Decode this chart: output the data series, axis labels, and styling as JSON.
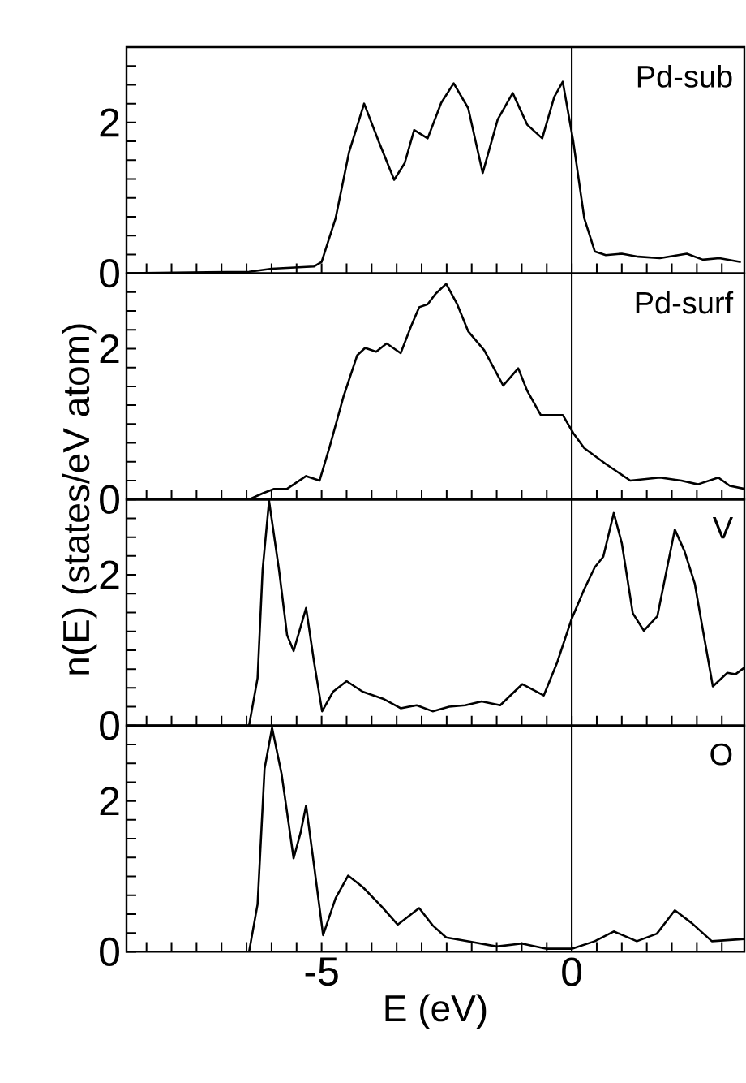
{
  "chart_data": [
    {
      "type": "line",
      "xlim": [
        -8.9,
        3.45
      ],
      "ylim": [
        0,
        3
      ],
      "tick_labels": "y",
      "legend": false,
      "grid": false,
      "marker": "none",
      "line_style": "solid",
      "xticks": [
        {
          "value": -8.5,
          "label": null
        },
        {
          "value": -8,
          "label": null
        },
        {
          "value": -7.5,
          "label": null
        },
        {
          "value": -7,
          "label": null
        },
        {
          "value": -6.5,
          "label": null
        },
        {
          "value": -6,
          "label": null
        },
        {
          "value": -5.5,
          "label": null
        },
        -5,
        {
          "value": -4.5,
          "label": null
        },
        {
          "value": -4,
          "label": null
        },
        {
          "value": -3.5,
          "label": null
        },
        {
          "value": -3,
          "label": null
        },
        {
          "value": -2.5,
          "label": null
        },
        {
          "value": -2,
          "label": null
        },
        {
          "value": -1.5,
          "label": null
        },
        {
          "value": -1,
          "label": null
        },
        {
          "value": -0.5,
          "label": null
        },
        0,
        {
          "value": 0.5,
          "label": null
        },
        {
          "value": 1,
          "label": null
        },
        {
          "value": 1.5,
          "label": null
        },
        {
          "value": 2,
          "label": null
        },
        {
          "value": 2.5,
          "label": null
        },
        {
          "value": 3,
          "label": null
        }
      ],
      "yticks": [
        0,
        {
          "value": 0.25,
          "label": null
        },
        {
          "value": 0.5,
          "label": null
        },
        {
          "value": 0.75,
          "label": null
        },
        {
          "value": 1,
          "label": null
        },
        {
          "value": 1.25,
          "label": null
        },
        {
          "value": 1.5,
          "label": null
        },
        {
          "value": 1.75,
          "label": null
        },
        2,
        {
          "value": 2.25,
          "label": null
        },
        {
          "value": 2.5,
          "label": null
        },
        {
          "value": 2.75,
          "label": null
        }
      ],
      "ref_lines": [
        {
          "axis": "x",
          "value": 0,
          "color": "#000000"
        }
      ],
      "series": [
        {
          "name": "Pd-sub",
          "color": "#000000",
          "x": [
            -8.9,
            -6.45,
            -6.0,
            -5.15,
            -5.0,
            -4.72,
            -4.45,
            -4.15,
            -3.86,
            -3.55,
            -3.34,
            -3.15,
            -2.88,
            -2.61,
            -2.36,
            -2.07,
            -1.78,
            -1.48,
            -1.18,
            -0.89,
            -0.59,
            -0.35,
            -0.18,
            0.03,
            0.25,
            0.46,
            0.68,
            1.0,
            1.33,
            1.76,
            2.3,
            2.62,
            2.95,
            3.38
          ],
          "values": [
            0,
            0.02,
            0.06,
            0.09,
            0.15,
            0.73,
            1.61,
            2.25,
            1.75,
            1.24,
            1.46,
            1.9,
            1.79,
            2.26,
            2.52,
            2.19,
            1.33,
            2.04,
            2.39,
            1.97,
            1.79,
            2.34,
            2.54,
            1.75,
            0.73,
            0.29,
            0.24,
            0.26,
            0.22,
            0.2,
            0.26,
            0.18,
            0.2,
            0.15
          ]
        }
      ]
    },
    {
      "type": "line",
      "xlim": [
        -8.9,
        3.45
      ],
      "ylim": [
        0,
        3
      ],
      "tick_labels": "y",
      "legend": false,
      "grid": false,
      "marker": "none",
      "line_style": "solid",
      "ylabel": "n(E) (states/eV atom)",
      "xticks": [
        {
          "value": -8.5,
          "label": null
        },
        {
          "value": -8,
          "label": null
        },
        {
          "value": -7.5,
          "label": null
        },
        {
          "value": -7,
          "label": null
        },
        {
          "value": -6.5,
          "label": null
        },
        {
          "value": -6,
          "label": null
        },
        {
          "value": -5.5,
          "label": null
        },
        -5,
        {
          "value": -4.5,
          "label": null
        },
        {
          "value": -4,
          "label": null
        },
        {
          "value": -3.5,
          "label": null
        },
        {
          "value": -3,
          "label": null
        },
        {
          "value": -2.5,
          "label": null
        },
        {
          "value": -2,
          "label": null
        },
        {
          "value": -1.5,
          "label": null
        },
        {
          "value": -1,
          "label": null
        },
        {
          "value": -0.5,
          "label": null
        },
        0,
        {
          "value": 0.5,
          "label": null
        },
        {
          "value": 1,
          "label": null
        },
        {
          "value": 1.5,
          "label": null
        },
        {
          "value": 2,
          "label": null
        },
        {
          "value": 2.5,
          "label": null
        },
        {
          "value": 3,
          "label": null
        }
      ],
      "yticks": [
        0,
        {
          "value": 0.25,
          "label": null
        },
        {
          "value": 0.5,
          "label": null
        },
        {
          "value": 0.75,
          "label": null
        },
        {
          "value": 1,
          "label": null
        },
        {
          "value": 1.25,
          "label": null
        },
        {
          "value": 1.5,
          "label": null
        },
        {
          "value": 1.75,
          "label": null
        },
        2,
        {
          "value": 2.25,
          "label": null
        },
        {
          "value": 2.5,
          "label": null
        },
        {
          "value": 2.75,
          "label": null
        }
      ],
      "ref_lines": [
        {
          "axis": "x",
          "value": 0,
          "color": "#000000"
        }
      ],
      "series": [
        {
          "name": "Pd-surf",
          "color": "#000000",
          "x": [
            -8.9,
            -6.45,
            -6.18,
            -5.95,
            -5.69,
            -5.31,
            -5.04,
            -4.83,
            -4.56,
            -4.29,
            -4.13,
            -3.91,
            -3.7,
            -3.42,
            -3.21,
            -3.05,
            -2.88,
            -2.72,
            -2.51,
            -2.29,
            -2.07,
            -1.75,
            -1.37,
            -1.07,
            -0.89,
            -0.62,
            -0.18,
            0.03,
            0.25,
            0.68,
            1.17,
            1.76,
            2.19,
            2.52,
            2.93,
            3.16,
            3.45
          ],
          "values": [
            0,
            0,
            0.08,
            0.14,
            0.14,
            0.31,
            0.25,
            0.72,
            1.37,
            1.91,
            2.01,
            1.96,
            2.07,
            1.94,
            2.3,
            2.55,
            2.59,
            2.73,
            2.86,
            2.59,
            2.23,
            1.98,
            1.51,
            1.74,
            1.44,
            1.12,
            1.12,
            0.88,
            0.68,
            0.47,
            0.25,
            0.29,
            0.25,
            0.2,
            0.29,
            0.18,
            0.14
          ]
        }
      ]
    },
    {
      "type": "line",
      "xlim": [
        -8.9,
        3.45
      ],
      "ylim": [
        0,
        3
      ],
      "tick_labels": "y",
      "legend": false,
      "grid": false,
      "marker": "none",
      "line_style": "solid",
      "xticks": [
        {
          "value": -8.5,
          "label": null
        },
        {
          "value": -8,
          "label": null
        },
        {
          "value": -7.5,
          "label": null
        },
        {
          "value": -7,
          "label": null
        },
        {
          "value": -6.5,
          "label": null
        },
        {
          "value": -6,
          "label": null
        },
        {
          "value": -5.5,
          "label": null
        },
        -5,
        {
          "value": -4.5,
          "label": null
        },
        {
          "value": -4,
          "label": null
        },
        {
          "value": -3.5,
          "label": null
        },
        {
          "value": -3,
          "label": null
        },
        {
          "value": -2.5,
          "label": null
        },
        {
          "value": -2,
          "label": null
        },
        {
          "value": -1.5,
          "label": null
        },
        {
          "value": -1,
          "label": null
        },
        {
          "value": -0.5,
          "label": null
        },
        0,
        {
          "value": 0.5,
          "label": null
        },
        {
          "value": 1,
          "label": null
        },
        {
          "value": 1.5,
          "label": null
        },
        {
          "value": 2,
          "label": null
        },
        {
          "value": 2.5,
          "label": null
        },
        {
          "value": 3,
          "label": null
        }
      ],
      "yticks": [
        0,
        {
          "value": 0.25,
          "label": null
        },
        {
          "value": 0.5,
          "label": null
        },
        {
          "value": 0.75,
          "label": null
        },
        {
          "value": 1,
          "label": null
        },
        {
          "value": 1.25,
          "label": null
        },
        {
          "value": 1.5,
          "label": null
        },
        {
          "value": 1.75,
          "label": null
        },
        2,
        {
          "value": 2.25,
          "label": null
        },
        {
          "value": 2.5,
          "label": null
        },
        {
          "value": 2.75,
          "label": null
        }
      ],
      "ref_lines": [
        {
          "axis": "x",
          "value": 0,
          "color": "#000000"
        }
      ],
      "series": [
        {
          "name": "V",
          "color": "#000000",
          "x": [
            -8.9,
            -6.45,
            -6.28,
            -6.18,
            -6.05,
            -5.85,
            -5.69,
            -5.56,
            -5.31,
            -5.15,
            -4.99,
            -4.77,
            -4.5,
            -4.18,
            -3.75,
            -3.42,
            -3.1,
            -2.78,
            -2.45,
            -2.13,
            -1.8,
            -1.43,
            -0.99,
            -0.56,
            -0.29,
            0,
            0.25,
            0.46,
            0.63,
            0.84,
            1.0,
            1.22,
            1.44,
            1.71,
            2.06,
            2.25,
            2.46,
            2.62,
            2.82,
            3.11,
            3.27,
            3.45
          ],
          "values": [
            0,
            0,
            0.63,
            2.06,
            2.98,
            2.06,
            1.2,
            0.99,
            1.56,
            0.84,
            0.19,
            0.45,
            0.59,
            0.45,
            0.35,
            0.23,
            0.27,
            0.19,
            0.25,
            0.27,
            0.32,
            0.27,
            0.55,
            0.4,
            0.84,
            1.42,
            1.81,
            2.1,
            2.24,
            2.82,
            2.42,
            1.49,
            1.26,
            1.45,
            2.6,
            2.32,
            1.88,
            1.27,
            0.52,
            0.7,
            0.68,
            0.77
          ]
        }
      ]
    },
    {
      "type": "line",
      "xlim": [
        -8.9,
        3.45
      ],
      "ylim": [
        0,
        3
      ],
      "legend": false,
      "grid": false,
      "marker": "none",
      "line_style": "solid",
      "xlabel": "E (eV)",
      "xticks": [
        {
          "value": -8.5,
          "label": null
        },
        {
          "value": -8,
          "label": null
        },
        {
          "value": -7.5,
          "label": null
        },
        {
          "value": -7,
          "label": null
        },
        {
          "value": -6.5,
          "label": null
        },
        {
          "value": -6,
          "label": null
        },
        {
          "value": -5.5,
          "label": null
        },
        -5,
        {
          "value": -4.5,
          "label": null
        },
        {
          "value": -4,
          "label": null
        },
        {
          "value": -3.5,
          "label": null
        },
        {
          "value": -3,
          "label": null
        },
        {
          "value": -2.5,
          "label": null
        },
        {
          "value": -2,
          "label": null
        },
        {
          "value": -1.5,
          "label": null
        },
        {
          "value": -1,
          "label": null
        },
        {
          "value": -0.5,
          "label": null
        },
        0,
        {
          "value": 0.5,
          "label": null
        },
        {
          "value": 1,
          "label": null
        },
        {
          "value": 1.5,
          "label": null
        },
        {
          "value": 2,
          "label": null
        },
        {
          "value": 2.5,
          "label": null
        },
        {
          "value": 3,
          "label": null
        }
      ],
      "yticks": [
        0,
        {
          "value": 0.25,
          "label": null
        },
        {
          "value": 0.5,
          "label": null
        },
        {
          "value": 0.75,
          "label": null
        },
        {
          "value": 1,
          "label": null
        },
        {
          "value": 1.25,
          "label": null
        },
        {
          "value": 1.5,
          "label": null
        },
        {
          "value": 1.75,
          "label": null
        },
        2,
        {
          "value": 2.25,
          "label": null
        },
        {
          "value": 2.5,
          "label": null
        },
        {
          "value": 2.75,
          "label": null
        }
      ],
      "ref_lines": [
        {
          "axis": "x",
          "value": 0,
          "color": "#000000"
        }
      ],
      "series": [
        {
          "name": "O",
          "color": "#000000",
          "x": [
            -8.9,
            -6.45,
            -6.28,
            -6.14,
            -5.99,
            -5.8,
            -5.56,
            -5.42,
            -5.31,
            -5.15,
            -4.97,
            -4.72,
            -4.47,
            -4.18,
            -3.8,
            -3.48,
            -3.05,
            -2.78,
            -2.51,
            -2.0,
            -1.5,
            -1.0,
            -0.5,
            0,
            0.46,
            0.84,
            1.3,
            1.7,
            2.06,
            2.4,
            2.8,
            3.45
          ],
          "values": [
            0,
            0,
            0.63,
            2.43,
            2.97,
            2.36,
            1.24,
            1.58,
            1.94,
            1.14,
            0.22,
            0.71,
            1.01,
            0.86,
            0.6,
            0.36,
            0.58,
            0.35,
            0.19,
            0.13,
            0.07,
            0.11,
            0.04,
            0.04,
            0.14,
            0.27,
            0.14,
            0.24,
            0.55,
            0.38,
            0.14,
            0.17
          ]
        }
      ]
    }
  ]
}
